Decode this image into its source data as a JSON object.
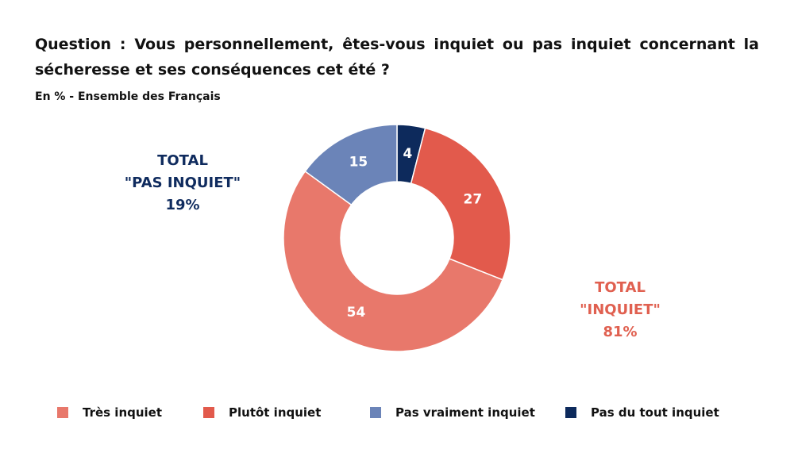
{
  "question": "Question : Vous personnellement, êtes-vous inquiet ou pas inquiet concernant la sécheresse et ses conséquences cet été ?",
  "subtitle": "En % - Ensemble des Français",
  "totals": {
    "pas_inquiet": {
      "line1": "TOTAL",
      "line2": "\"PAS INQUIET\"",
      "value": "19%",
      "color": "#0f2b5e"
    },
    "inquiet": {
      "line1": "TOTAL",
      "line2": "\"INQUIET\"",
      "value": "81%",
      "color": "#e06050"
    }
  },
  "chart_data": {
    "type": "pie",
    "donut": true,
    "title": "Question : Vous personnellement, êtes-vous inquiet ou pas inquiet concernant la sécheresse et ses conséquences cet été ?",
    "unit": "%",
    "slices": [
      {
        "label": "Pas du tout inquiet",
        "value": 4,
        "color": "#0d2a5c"
      },
      {
        "label": "Plutôt inquiet",
        "value": 27,
        "color": "#e25a4c"
      },
      {
        "label": "Très inquiet",
        "value": 54,
        "color": "#e8786b"
      },
      {
        "label": "Pas vraiment inquiet",
        "value": 15,
        "color": "#6b84b8"
      }
    ],
    "legend": [
      {
        "label": "Très inquiet",
        "color": "#e8786b"
      },
      {
        "label": "Plutôt inquiet",
        "color": "#e25a4c"
      },
      {
        "label": "Pas vraiment inquiet",
        "color": "#6b84b8"
      },
      {
        "label": "Pas du tout inquiet",
        "color": "#0d2a5c"
      }
    ],
    "legend_position": "bottom"
  }
}
